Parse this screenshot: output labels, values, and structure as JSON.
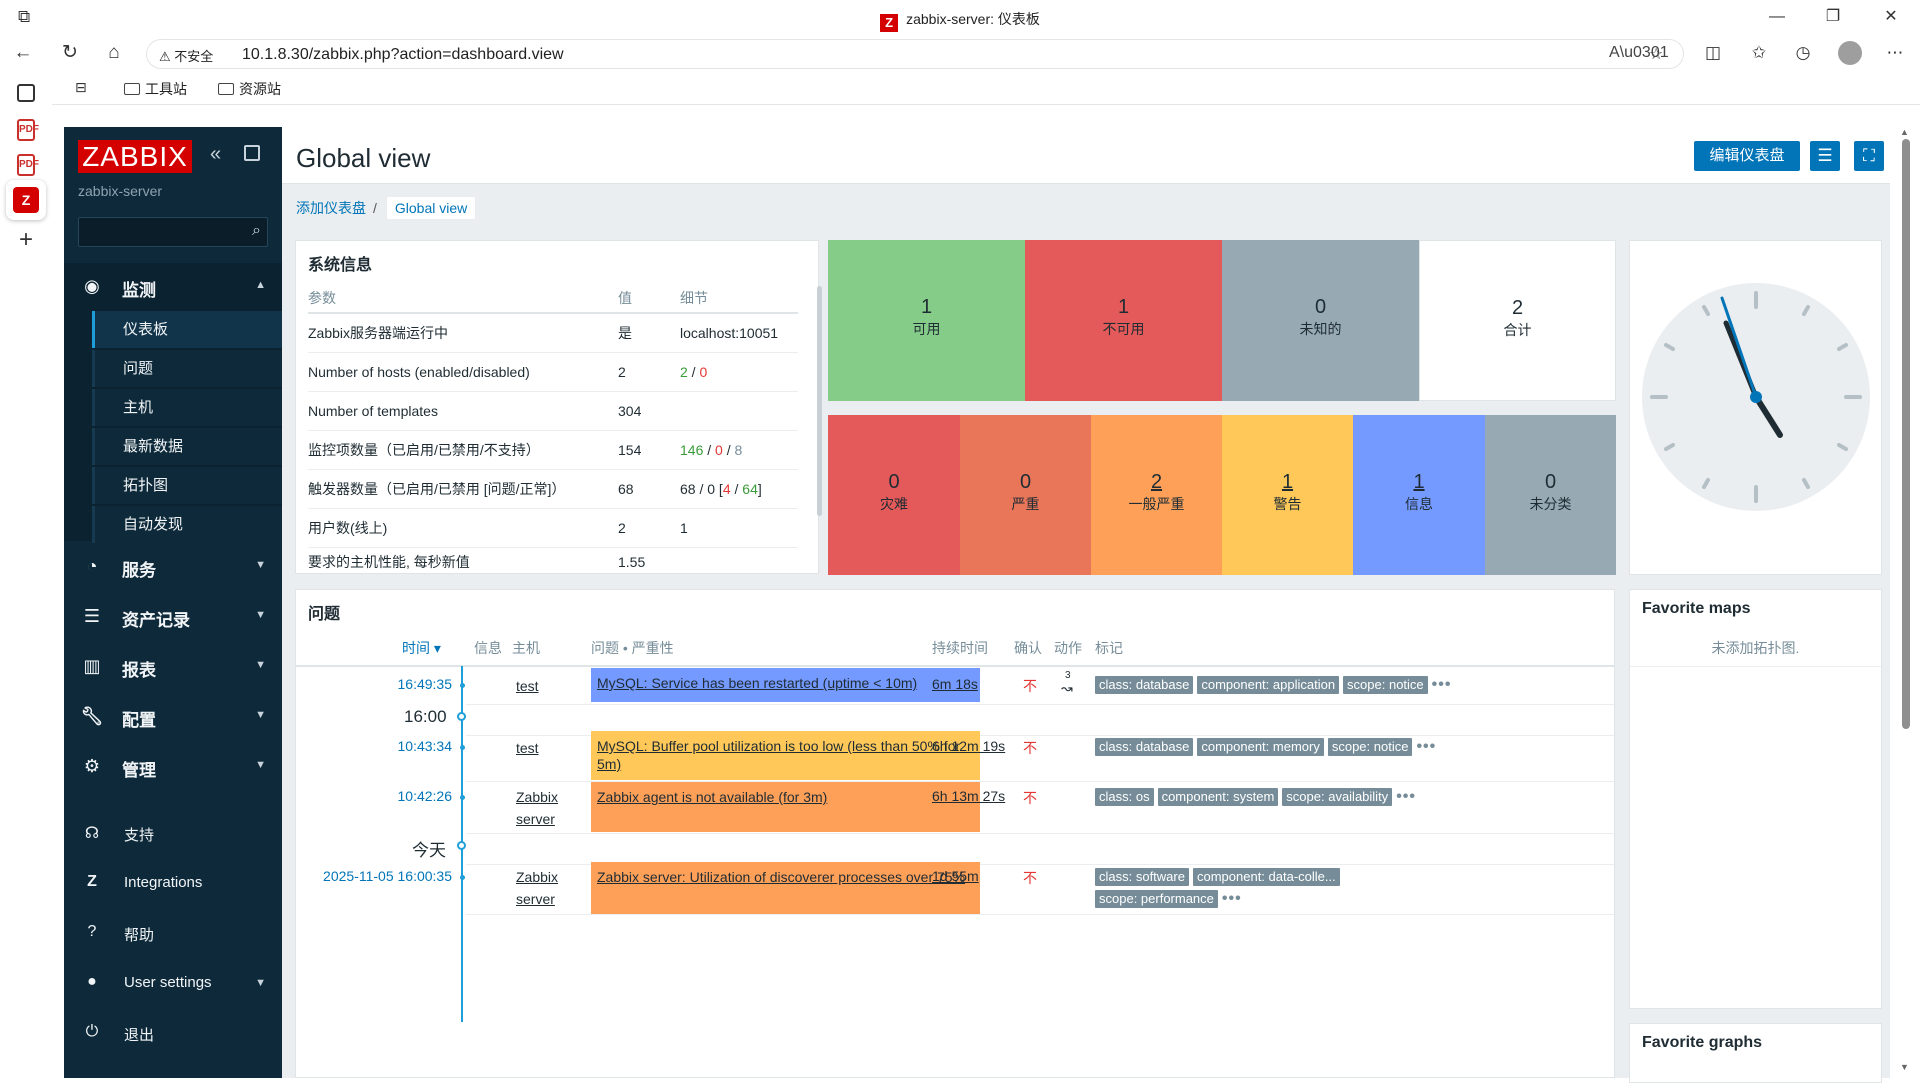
{
  "browser": {
    "window_title": "zabbix-server: 仪表板",
    "security_label": "不安全",
    "url": "10.1.8.30/zabbix.php?action=dashboard.view",
    "bookmarks": [
      "工具站",
      "资源站"
    ]
  },
  "sidebar": {
    "logo": "ZABBIX",
    "server_name": "zabbix-server",
    "search_placeholder": "",
    "sections": [
      {
        "label": "监测",
        "icon": "eye-icon"
      },
      {
        "label": "服务",
        "icon": "services-icon"
      },
      {
        "label": "资产记录",
        "icon": "inventory-icon"
      },
      {
        "label": "报表",
        "icon": "reports-icon"
      },
      {
        "label": "配置",
        "icon": "wrench-icon"
      },
      {
        "label": "管理",
        "icon": "gear-icon"
      }
    ],
    "monitoring_items": [
      "仪表板",
      "问题",
      "主机",
      "最新数据",
      "拓扑图",
      "自动发现"
    ],
    "bottom_items": [
      {
        "label": "支持",
        "icon": "headset-icon"
      },
      {
        "label": "Integrations",
        "icon": "zabbix-z-icon"
      },
      {
        "label": "帮助",
        "icon": "help-icon"
      },
      {
        "label": "User settings",
        "icon": "user-icon"
      },
      {
        "label": "退出",
        "icon": "power-icon"
      }
    ]
  },
  "header": {
    "title": "Global view",
    "edit_button": "编辑仪表盘"
  },
  "breadcrumb": {
    "parent": "添加仪表盘",
    "current": "Global view"
  },
  "system_info": {
    "title": "系统信息",
    "columns": [
      "参数",
      "值",
      "细节"
    ],
    "rows": [
      {
        "param": "Zabbix服务器端运行中",
        "value": "是",
        "detail": "localhost:10051"
      },
      {
        "param": "Number of hosts (enabled/disabled)",
        "value": "2",
        "d1": "2",
        "d2": "0"
      },
      {
        "param": "Number of templates",
        "value": "304",
        "detail": ""
      },
      {
        "param": "监控项数量（已启用/已禁用/不支持）",
        "value": "154",
        "d1": "146",
        "d2": "0",
        "d3": "8"
      },
      {
        "param": "触发器数量（已启用/已禁用 [问题/正常]）",
        "value": "68",
        "d0": "68 / 0 [",
        "d1": "4",
        "d2": "64",
        "d3": "]"
      },
      {
        "param": "用户数(线上)",
        "value": "2",
        "d1": "1"
      },
      {
        "param": "要求的主机性能, 每秒新值",
        "value": "1.55",
        "detail": ""
      }
    ]
  },
  "host_availability": [
    {
      "count": "1",
      "label": "可用",
      "color": "#86cc89"
    },
    {
      "count": "1",
      "label": "不可用",
      "color": "#e45959"
    },
    {
      "count": "0",
      "label": "未知的",
      "color": "#97aab3"
    },
    {
      "count": "2",
      "label": "合计",
      "color": "#ffffff"
    }
  ],
  "severity": [
    {
      "count": "0",
      "label": "灾难",
      "color": "#e45959"
    },
    {
      "count": "0",
      "label": "严重",
      "color": "#e97659"
    },
    {
      "count": "2",
      "label": "一般严重",
      "color": "#ffa059"
    },
    {
      "count": "1",
      "label": "警告",
      "color": "#ffc859"
    },
    {
      "count": "1",
      "label": "信息",
      "color": "#7499ff"
    },
    {
      "count": "0",
      "label": "未分类",
      "color": "#97aab3"
    }
  ],
  "problems": {
    "title": "问题",
    "columns": [
      "时间 ▾",
      "信息",
      "主机",
      "问题 • 严重性",
      "持续时间",
      "确认",
      "动作",
      "标记"
    ],
    "divider_1": "16:00",
    "divider_2": "今天",
    "rows": [
      {
        "time": "16:49:35",
        "host": "test",
        "problem": "MySQL: Service has been restarted (uptime < 10m)",
        "duration": "6m 18s",
        "ack": "不",
        "actions": "3",
        "tags": [
          "class: database",
          "component: application",
          "scope: notice"
        ],
        "color": "#7499ff"
      },
      {
        "time": "10:43:34",
        "host": "test",
        "problem": "MySQL: Buffer pool utilization is too low (less than 50% for 5m)",
        "duration": "6h 12m 19s",
        "ack": "不",
        "tags": [
          "class: database",
          "component: memory",
          "scope: notice"
        ],
        "color": "#ffc859"
      },
      {
        "time": "10:42:26",
        "host": "Zabbix server",
        "problem": "Zabbix agent is not available (for 3m)",
        "duration": "6h 13m 27s",
        "ack": "不",
        "tags": [
          "class: os",
          "component: system",
          "scope: availability"
        ],
        "color": "#ffa059"
      },
      {
        "time": "2025-11-05 16:00:35",
        "host": "Zabbix server",
        "problem": "Zabbix server: Utilization of discoverer processes over 75%",
        "duration": "1d 55m",
        "ack": "不",
        "tags": [
          "class: software",
          "component: data-colle...",
          "scope: performance"
        ],
        "color": "#ffa059"
      }
    ]
  },
  "favorite_maps": {
    "title": "Favorite maps",
    "empty": "未添加拓扑图."
  },
  "favorite_graphs": {
    "title": "Favorite graphs"
  }
}
